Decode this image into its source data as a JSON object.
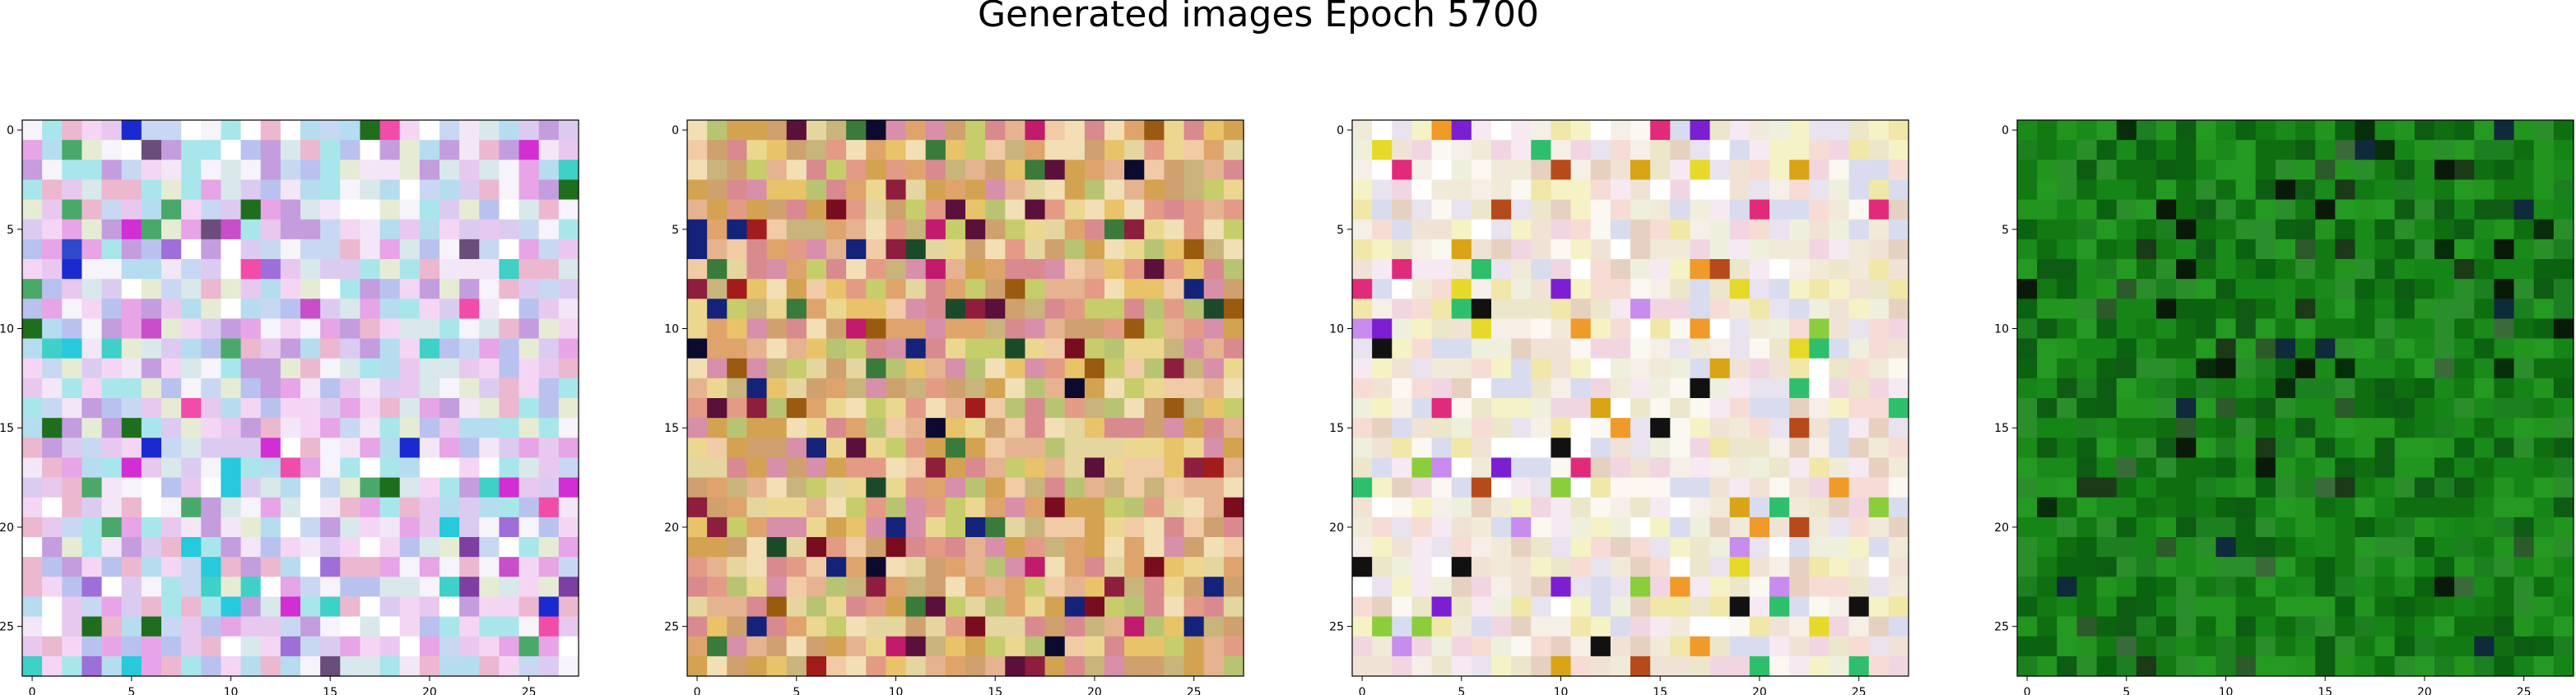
{
  "title": "Generated images Epoch 5700",
  "chart_data": {
    "type": "heatmap",
    "title": "Generated images Epoch 5700",
    "panels": [
      {
        "name": "panel-1",
        "grid": [
          28,
          28
        ],
        "xlim": [
          -0.5,
          27.5
        ],
        "ylim": [
          27.5,
          -0.5
        ],
        "xticks": [
          0,
          5,
          10,
          15,
          20,
          25
        ],
        "yticks": [
          0,
          5,
          10,
          15,
          20,
          25
        ],
        "palette": [
          "#e9c8ef",
          "#f3e6f6",
          "#dccbf1",
          "#c8d8f2",
          "#f6f3fa",
          "#e7a4e6",
          "#b9c2ef",
          "#d9e8ea",
          "#ecb8cf",
          "#a9e6ec",
          "#f4d6f4",
          "#c49ddf",
          "#b6dcef",
          "#e6ecd4",
          "#ffffff"
        ],
        "accents": [
          "#d12fd4",
          "#27c9dc",
          "#1b2ad0",
          "#1e6e1e",
          "#4aa96a",
          "#7d3fa1",
          "#f24ca9",
          "#2f49c9",
          "#6a4d7a",
          "#c84fc9",
          "#3fd0c7",
          "#9e6fd8"
        ],
        "accent_rate": 0.1
      },
      {
        "name": "panel-2",
        "grid": [
          28,
          28
        ],
        "xlim": [
          -0.5,
          27.5
        ],
        "ylim": [
          27.5,
          -0.5
        ],
        "xticks": [
          0,
          5,
          10,
          15,
          20,
          25
        ],
        "yticks": [
          0,
          5,
          10,
          15,
          20,
          25
        ],
        "palette": [
          "#e8c36a",
          "#ecd791",
          "#dfa46b",
          "#d98a8f",
          "#c6cd6a",
          "#e6b390",
          "#f0cba6",
          "#d3a351",
          "#e39b86",
          "#c9b47b",
          "#e5d6a0",
          "#d88fa9",
          "#b9c473",
          "#f2dfb6",
          "#cfa16e"
        ],
        "accents": [
          "#7a0c1f",
          "#0c0a2e",
          "#1a4a2a",
          "#8d1e3e",
          "#a21c1c",
          "#3a7a3a",
          "#14227a",
          "#5b0f3b",
          "#c21a6c",
          "#9a5a10"
        ],
        "accent_rate": 0.12
      },
      {
        "name": "panel-3",
        "grid": [
          28,
          28
        ],
        "xlim": [
          -0.5,
          27.5
        ],
        "ylim": [
          27.5,
          -0.5
        ],
        "xticks": [
          0,
          5,
          10,
          15,
          20,
          25
        ],
        "yticks": [
          0,
          5,
          10,
          15,
          20,
          25
        ],
        "palette": [
          "#f6efe8",
          "#f0e3d6",
          "#f7e9f2",
          "#ece6cb",
          "#f5f2c5",
          "#f1d6e2",
          "#e9e3ef",
          "#f2ead9",
          "#eef0dd",
          "#f6dcd4",
          "#fbf7f1",
          "#e6d1c0",
          "#f0e7a8",
          "#d9dcee",
          "#ffffff"
        ],
        "accents": [
          "#e7d92a",
          "#8ccd3c",
          "#e22a7a",
          "#d9a516",
          "#7c1fd3",
          "#111111",
          "#b74a1a",
          "#2fbf6c",
          "#c88cef",
          "#f09a2a"
        ],
        "accent_rate": 0.08
      },
      {
        "name": "panel-4",
        "grid": [
          28,
          28
        ],
        "xlim": [
          -0.5,
          27.5
        ],
        "ylim": [
          27.5,
          -0.5
        ],
        "xticks": [
          0,
          5,
          10,
          15,
          20,
          25
        ],
        "yticks": [
          0,
          5,
          10,
          15,
          20,
          25
        ],
        "palette": [
          "#1a8a1a",
          "#137a13",
          "#0f6f10",
          "#22951f",
          "#0b6210",
          "#2a8f2a",
          "#1c7f20",
          "#0e5c14",
          "#259a22",
          "#168518"
        ],
        "accents": [
          "#062e0a",
          "#0a1a08",
          "#1a3a18",
          "#2c5a2a",
          "#0f2a3a",
          "#3a6a3a"
        ],
        "accent_rate": 0.1
      }
    ]
  }
}
